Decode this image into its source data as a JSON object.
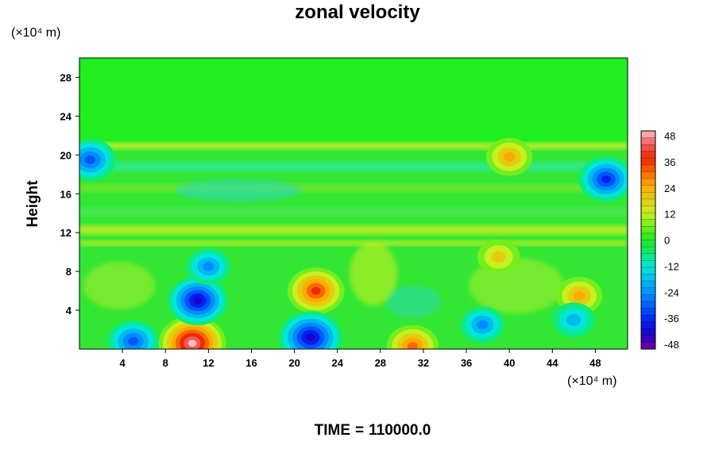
{
  "chart_data": {
    "type": "heatmap",
    "title": "zonal velocity",
    "ylabel": "Height",
    "xlabel": "",
    "x_unit_label": "(×10⁴ m)",
    "y_unit_label": "(×10⁴ m)",
    "x_ticks": [
      4,
      8,
      12,
      16,
      20,
      24,
      28,
      32,
      36,
      40,
      44,
      48
    ],
    "y_ticks": [
      4,
      8,
      12,
      16,
      20,
      24,
      28
    ],
    "xlim": [
      0,
      51
    ],
    "ylim": [
      0,
      30
    ],
    "colorbar": {
      "ticks": [
        48,
        36,
        24,
        12,
        0,
        -12,
        -24,
        -36,
        -48
      ],
      "range": [
        -48,
        48
      ]
    },
    "features": [
      {
        "x": 10.5,
        "y": 0.6,
        "value": 48
      },
      {
        "x": 31,
        "y": 0.3,
        "value": 30
      },
      {
        "x": 22,
        "y": 6,
        "value": 36
      },
      {
        "x": 21.5,
        "y": 1.2,
        "value": -44
      },
      {
        "x": 11,
        "y": 5,
        "value": -40
      },
      {
        "x": 12,
        "y": 8.5,
        "value": -22
      },
      {
        "x": 40,
        "y": 19.8,
        "value": 24
      },
      {
        "x": 49,
        "y": 17.5,
        "value": -34
      },
      {
        "x": 39,
        "y": 9.5,
        "value": 20
      },
      {
        "x": 46.5,
        "y": 5.5,
        "value": 24
      },
      {
        "x": 5,
        "y": 0.8,
        "value": -30
      },
      {
        "x": 1,
        "y": 19.5,
        "value": -30
      },
      {
        "x": 37.5,
        "y": 2.5,
        "value": -22
      },
      {
        "x": 46,
        "y": 3,
        "value": -20
      }
    ]
  },
  "footer": {
    "time_label": "TIME",
    "time_eq": "=",
    "time_value": "110000.0"
  }
}
